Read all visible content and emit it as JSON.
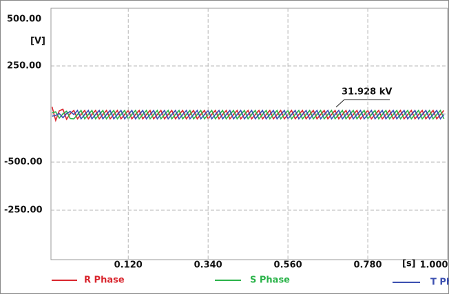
{
  "chart_data": {
    "type": "line",
    "y_axis_labels": [
      "500.00",
      "[V]",
      "250.00",
      "-500.00",
      "-250.00"
    ],
    "x_unit": "[s]",
    "annotation": "31.928 kV",
    "xlim": [
      -0.093,
      1.0
    ],
    "ylim": [
      -750,
      550
    ],
    "xticks": [
      {
        "value": 0.12,
        "label": "0.120"
      },
      {
        "value": 0.34,
        "label": "0.340"
      },
      {
        "value": 0.56,
        "label": "0.560"
      },
      {
        "value": 0.78,
        "label": "0.780"
      },
      {
        "value": 1.0,
        "label": "1.000"
      }
    ],
    "x": [
      -0.09,
      -0.08,
      -0.07,
      -0.06,
      -0.05,
      -0.04,
      -0.03,
      -0.02,
      -0.01,
      0,
      0.01,
      0.02,
      0.03,
      0.04,
      0.05,
      0.06,
      0.07,
      0.08,
      0.09,
      0.1,
      0.11,
      0.12,
      0.13,
      0.14,
      0.15,
      0.16,
      0.17,
      0.18,
      0.19,
      0.2,
      0.21,
      0.22,
      0.23,
      0.24,
      0.25,
      0.26,
      0.27,
      0.28,
      0.29,
      0.3,
      0.31,
      0.32,
      0.33,
      0.34,
      0.35,
      0.36,
      0.37,
      0.38,
      0.39,
      0.4,
      0.41,
      0.42,
      0.43,
      0.44,
      0.45,
      0.46,
      0.47,
      0.48,
      0.49,
      0.5,
      0.51,
      0.52,
      0.53,
      0.54,
      0.55,
      0.56,
      0.57,
      0.58,
      0.59,
      0.6,
      0.61,
      0.62,
      0.63,
      0.64,
      0.65,
      0.66,
      0.67,
      0.68,
      0.69,
      0.7,
      0.71,
      0.72,
      0.73,
      0.74,
      0.75,
      0.76,
      0.77,
      0.78,
      0.79,
      0.8,
      0.81,
      0.82,
      0.83,
      0.84,
      0.85,
      0.86,
      0.87,
      0.88,
      0.89,
      0.9,
      0.91,
      0.92,
      0.93,
      0.94,
      0.95,
      0.96,
      0.97,
      0.98,
      0.99
    ],
    "series": [
      {
        "name": "R Phase",
        "color": "#d9262e",
        "values": [
          40,
          -30,
          20,
          28,
          -24,
          4,
          22,
          -22,
          0,
          22,
          -22,
          0,
          22,
          -22,
          0,
          22,
          -22,
          0,
          22,
          -22,
          0,
          22,
          -22,
          0,
          22,
          -22,
          0,
          22,
          -22,
          0,
          22,
          -22,
          0,
          22,
          -22,
          0,
          22,
          -22,
          0,
          22,
          -22,
          0,
          22,
          -22,
          0,
          22,
          -22,
          0,
          22,
          -22,
          0,
          22,
          -22,
          0,
          22,
          -22,
          0,
          22,
          -22,
          0,
          22,
          -22,
          0,
          22,
          -22,
          0,
          22,
          -22,
          0,
          22,
          -22,
          0,
          22,
          -22,
          0,
          22,
          -22,
          0,
          22,
          -22,
          0,
          22,
          -22,
          0,
          22,
          -22,
          0,
          22,
          -22,
          0,
          22,
          -22,
          0,
          22,
          -22,
          0,
          22,
          -22,
          0,
          22,
          -22,
          0,
          22,
          -22,
          0,
          22,
          -22,
          0,
          22
        ]
      },
      {
        "name": "S Phase",
        "color": "#2bb34a",
        "values": [
          10,
          14,
          -18,
          4,
          18,
          -20,
          -22,
          0,
          22,
          -22,
          0,
          22,
          -22,
          0,
          22,
          -22,
          0,
          22,
          -22,
          0,
          22,
          -22,
          0,
          22,
          -22,
          0,
          22,
          -22,
          0,
          22,
          -22,
          0,
          22,
          -22,
          0,
          22,
          -22,
          0,
          22,
          -22,
          0,
          22,
          -22,
          0,
          22,
          -22,
          0,
          22,
          -22,
          0,
          22,
          -22,
          0,
          22,
          -22,
          0,
          22,
          -22,
          0,
          22,
          -22,
          0,
          22,
          -22,
          0,
          22,
          -22,
          0,
          22,
          -22,
          0,
          22,
          -22,
          0,
          22,
          -22,
          0,
          22,
          -22,
          0,
          22,
          -22,
          0,
          22,
          -22,
          0,
          22,
          -22,
          0,
          22,
          -22,
          0,
          22,
          -22,
          0,
          22,
          -22,
          0,
          22,
          -22,
          0,
          22,
          -22,
          0,
          22,
          -22,
          0,
          22,
          -22
        ]
      },
      {
        "name": "T Phase",
        "color": "#3b4fb0",
        "values": [
          -8,
          -4,
          6,
          -16,
          6,
          16,
          0,
          22,
          -22,
          0,
          22,
          -22,
          0,
          22,
          -22,
          0,
          22,
          -22,
          0,
          22,
          -22,
          0,
          22,
          -22,
          0,
          22,
          -22,
          0,
          22,
          -22,
          0,
          22,
          -22,
          0,
          22,
          -22,
          0,
          22,
          -22,
          0,
          22,
          -22,
          0,
          22,
          -22,
          0,
          22,
          -22,
          0,
          22,
          -22,
          0,
          22,
          -22,
          0,
          22,
          -22,
          0,
          22,
          -22,
          0,
          22,
          -22,
          0,
          22,
          -22,
          0,
          22,
          -22,
          0,
          22,
          -22,
          0,
          22,
          -22,
          0,
          22,
          -22,
          0,
          22,
          -22,
          0,
          22,
          -22,
          0,
          22,
          -22,
          0,
          22,
          -22,
          0,
          22,
          -22,
          0,
          22,
          -22,
          0,
          22,
          -22,
          0,
          22,
          -22,
          0,
          22,
          -22,
          0,
          22,
          -22,
          0
        ]
      }
    ]
  }
}
